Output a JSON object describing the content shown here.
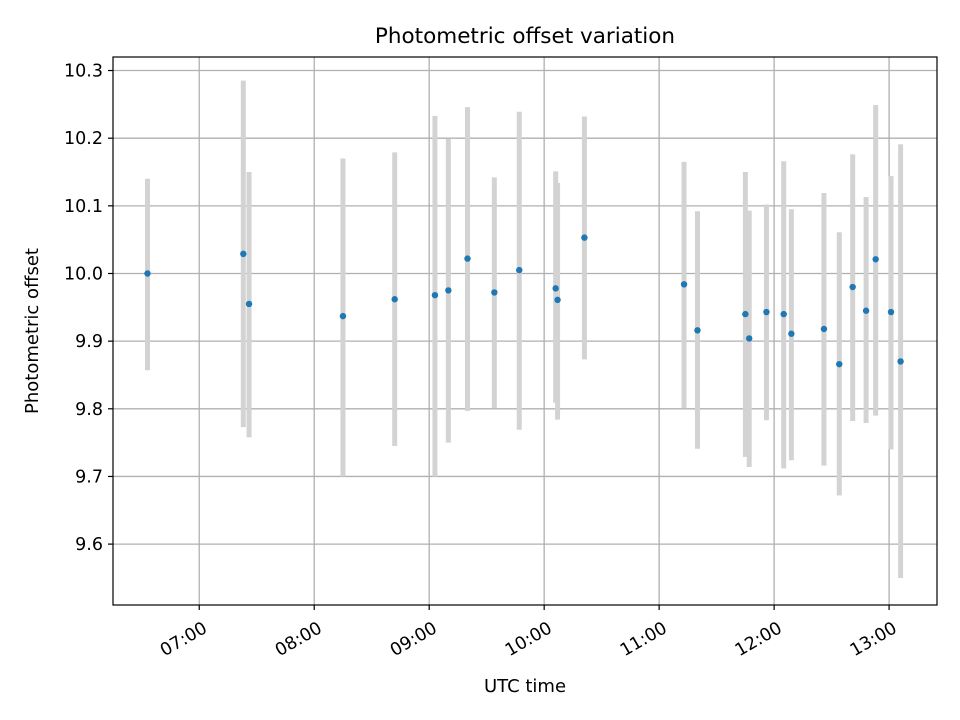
{
  "chart_data": {
    "type": "scatter",
    "title": "Photometric offset variation",
    "xlabel": "UTC time",
    "ylabel": "Photometric offset",
    "grid": true,
    "ylim": [
      9.51,
      10.32
    ],
    "xlim": [
      "06:15",
      "13:25"
    ],
    "x_ticks": [
      "07:00",
      "08:00",
      "09:00",
      "10:00",
      "11:00",
      "12:00",
      "13:00"
    ],
    "y_ticks": [
      "9.6",
      "9.7",
      "9.8",
      "9.9",
      "10.0",
      "10.1",
      "10.2",
      "10.3"
    ],
    "colors": {
      "points": "#1f77b4",
      "errorbars": "#d3d3d3",
      "grid": "#b0b0b0"
    },
    "series": [
      {
        "points": [
          {
            "x": "06:33",
            "y": 10.0,
            "ylow": 9.857,
            "yhigh": 10.14
          },
          {
            "x": "07:23",
            "y": 10.029,
            "ylow": 9.773,
            "yhigh": 10.285
          },
          {
            "x": "07:26",
            "y": 9.955,
            "ylow": 9.758,
            "yhigh": 10.15
          },
          {
            "x": "08:15",
            "y": 9.937,
            "ylow": 9.7,
            "yhigh": 10.17
          },
          {
            "x": "08:42",
            "y": 9.962,
            "ylow": 9.745,
            "yhigh": 10.179
          },
          {
            "x": "09:03",
            "y": 9.968,
            "ylow": 9.7,
            "yhigh": 10.233
          },
          {
            "x": "09:10",
            "y": 9.975,
            "ylow": 9.75,
            "yhigh": 10.199
          },
          {
            "x": "09:20",
            "y": 10.022,
            "ylow": 9.797,
            "yhigh": 10.246
          },
          {
            "x": "09:34",
            "y": 9.972,
            "ylow": 9.801,
            "yhigh": 10.142
          },
          {
            "x": "09:47",
            "y": 10.005,
            "ylow": 9.769,
            "yhigh": 10.239
          },
          {
            "x": "10:06",
            "y": 9.978,
            "ylow": 9.809,
            "yhigh": 10.151
          },
          {
            "x": "10:07",
            "y": 9.961,
            "ylow": 9.784,
            "yhigh": 10.134
          },
          {
            "x": "10:21",
            "y": 10.053,
            "ylow": 9.873,
            "yhigh": 10.232
          },
          {
            "x": "11:13",
            "y": 9.984,
            "ylow": 9.801,
            "yhigh": 10.165
          },
          {
            "x": "11:20",
            "y": 9.916,
            "ylow": 9.741,
            "yhigh": 10.092
          },
          {
            "x": "11:45",
            "y": 9.94,
            "ylow": 9.729,
            "yhigh": 10.15
          },
          {
            "x": "11:47",
            "y": 9.904,
            "ylow": 9.714,
            "yhigh": 10.093
          },
          {
            "x": "11:56",
            "y": 9.943,
            "ylow": 9.783,
            "yhigh": 10.102
          },
          {
            "x": "12:05",
            "y": 9.94,
            "ylow": 9.712,
            "yhigh": 10.166
          },
          {
            "x": "12:09",
            "y": 9.911,
            "ylow": 9.724,
            "yhigh": 10.095
          },
          {
            "x": "12:26",
            "y": 9.918,
            "ylow": 9.716,
            "yhigh": 10.119
          },
          {
            "x": "12:34",
            "y": 9.866,
            "ylow": 9.672,
            "yhigh": 10.061
          },
          {
            "x": "12:41",
            "y": 9.98,
            "ylow": 9.782,
            "yhigh": 10.176
          },
          {
            "x": "12:48",
            "y": 9.945,
            "ylow": 9.779,
            "yhigh": 10.113
          },
          {
            "x": "12:53",
            "y": 10.021,
            "ylow": 9.79,
            "yhigh": 10.249
          },
          {
            "x": "13:01",
            "y": 9.943,
            "ylow": 9.74,
            "yhigh": 10.144
          },
          {
            "x": "13:06",
            "y": 9.87,
            "ylow": 9.55,
            "yhigh": 10.191
          }
        ]
      }
    ]
  }
}
